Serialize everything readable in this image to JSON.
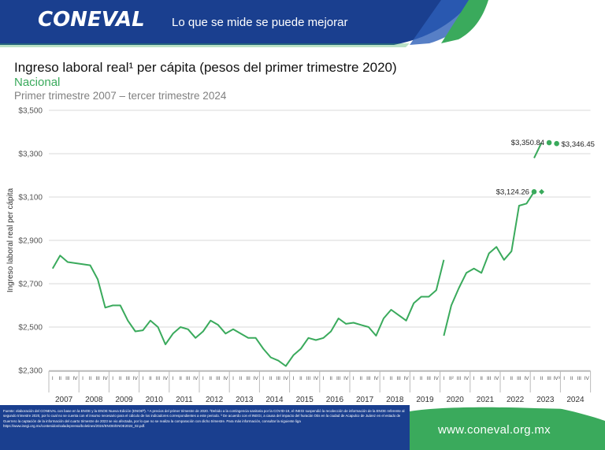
{
  "header": {
    "logo": "CONEVAL",
    "slogan": "Lo que se mide se puede mejorar"
  },
  "title": "Ingreso laboral real¹ per cápita (pesos del primer trimestre 2020)",
  "subtitle": "Nacional",
  "period": "Primer trimestre 2007 – tercer trimestre 2024",
  "colors": {
    "line": "#3aaa5c",
    "grid": "#d9d9d9",
    "header": "#1a3f8f",
    "accent": "#3aaa5c"
  },
  "chart_data": {
    "type": "line",
    "ylabel": "Ingreso laboral real per cápita",
    "ylim": [
      2300,
      3500
    ],
    "yticks": [
      2300,
      2500,
      2700,
      2900,
      3100,
      3300,
      3500
    ],
    "ytick_labels": [
      "$2,300",
      "$2,500",
      "$2,700",
      "$2,900",
      "$3,100",
      "$3,300",
      "$3,500"
    ],
    "grid": true,
    "quarter_labels": [
      "I",
      "II",
      "III",
      "IV"
    ],
    "years": [
      "2007",
      "2008",
      "2009",
      "2010",
      "2011",
      "2012",
      "2013",
      "2014",
      "2015",
      "2016",
      "2017",
      "2018",
      "2019",
      "2020",
      "2021",
      "2022",
      "2023",
      "2024"
    ],
    "series": [
      {
        "values": [
          2770,
          2830,
          2800,
          2795,
          2790,
          2785,
          2720,
          2590,
          2600,
          2600,
          2530,
          2480,
          2485,
          2530,
          2500,
          2420,
          2470,
          2500,
          2490,
          2450,
          2480,
          2530,
          2510,
          2470,
          2490,
          2470,
          2450,
          2450,
          2400,
          2360,
          2345,
          2320,
          2370,
          2400,
          2450,
          2440,
          2450,
          2480,
          2540,
          2515,
          2520,
          2510,
          2500,
          2460,
          2540,
          2580,
          2555,
          2530,
          2610,
          2640,
          2640,
          2670,
          2810
        ]
      },
      {
        "start_index": 52,
        "values": [
          2460,
          2600,
          2680,
          2750,
          2770,
          2750,
          2840,
          2870,
          2810,
          2850,
          3060,
          3070,
          3124.26
        ]
      },
      {
        "start_index": 64,
        "values": [
          3280,
          3350.84
        ]
      }
    ],
    "markers": [
      {
        "index": 64,
        "value": 3124.26,
        "label": "$3,124.26",
        "shape": "circle"
      },
      {
        "index": 65,
        "value": 3124.26,
        "shape": "diamond"
      },
      {
        "index": 66,
        "value": 3350.84,
        "label": "$3,350.84",
        "shape": "circle"
      },
      {
        "index": 67,
        "value": 3346.45,
        "label": "$3,346.45",
        "shape": "circle"
      }
    ],
    "annotations": [
      "II²",
      "IV³"
    ]
  },
  "footer": {
    "note": "Fuente: elaboración del CONEVAL con base en la ENOE y la ENOE Nueva Edición (ENOEᴺ). ¹ A precios del primer trimestre de 2020. ²Debido a la contingencia sanitaria por la COVID-19, el INEGI suspendió la recolección de información de la ENOE referente al segundo trimestre 2020, por lo cual no se cuenta con el insumo necesario para el cálculo de los indicadores correspondientes a este periodo. ³ De acuerdo con el INEGI, a causa del impacto del huracán Otis en la ciudad de Acapulco de Juárez en el estado de Guerrero la captación de la información del cuarto trimestre de 2023 se vio afectada, por lo que no se realiza la comparación con dicho trimestre. Para más información, consultar la siguiente liga https://www.inegi.org.mx/contenidos/saladeprensa/boletines/2024/ENOE/ENOE2024_02.pdf.",
    "url": "www.coneval.org.mx"
  }
}
